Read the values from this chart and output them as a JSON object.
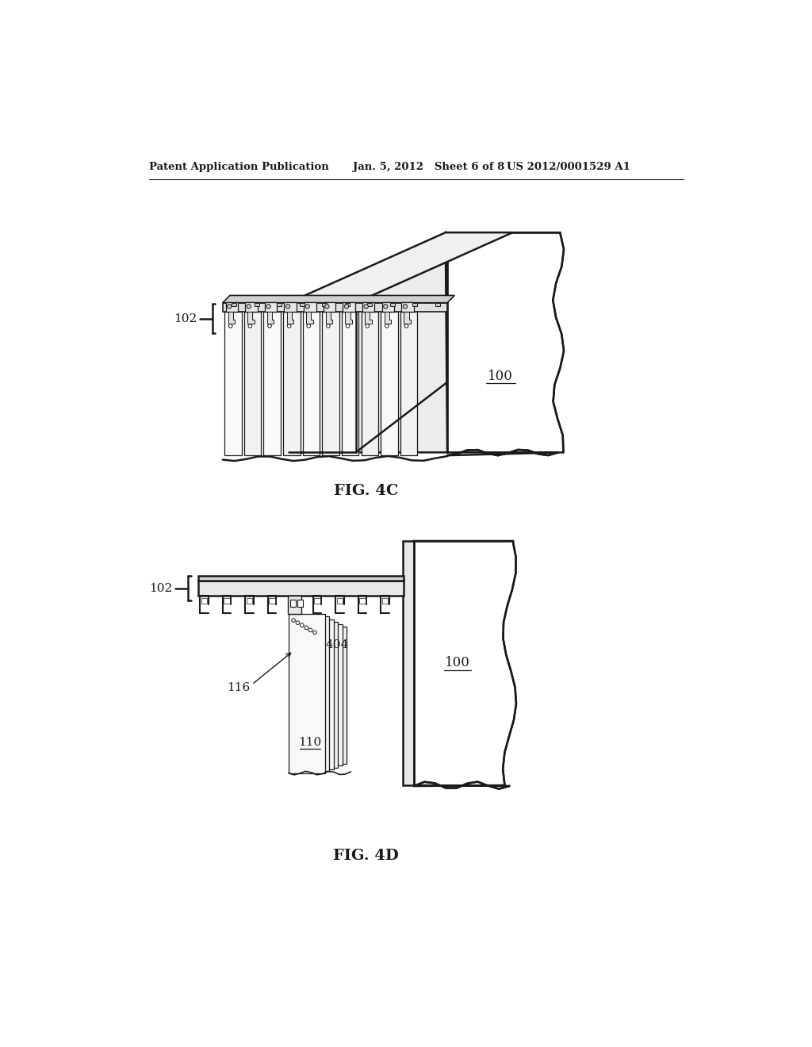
{
  "header_left": "Patent Application Publication",
  "header_mid": "Jan. 5, 2012   Sheet 6 of 8",
  "header_right": "US 2012/0001529 A1",
  "fig4c_label": "FIG. 4C",
  "fig4d_label": "FIG. 4D",
  "label_100_4c": "100",
  "label_102_4c": "102",
  "label_100_4d": "100",
  "label_102_4d": "102",
  "label_110": "110",
  "label_116": "116",
  "label_404": "404",
  "bg_color": "#ffffff",
  "line_color": "#1a1a1a"
}
